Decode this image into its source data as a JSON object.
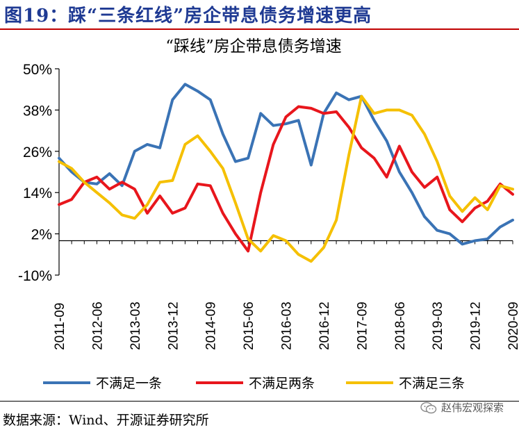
{
  "header": {
    "title": "图19：踩“三条红线”房企带息债务增速更高"
  },
  "footer": {
    "source": "数据来源：Wind、开源证券研究所",
    "watermark": "赵伟宏观探索"
  },
  "chart_data": {
    "type": "line",
    "title": "“踩线”房企带息债务增速",
    "xlabel": "",
    "ylabel": "",
    "ylim": [
      -10,
      50
    ],
    "yticks": [
      -10,
      2,
      14,
      26,
      38,
      50
    ],
    "ytick_labels": [
      "-10%",
      "2%",
      "14%",
      "26%",
      "38%",
      "50%"
    ],
    "x_tick_labels": [
      "2011-09",
      "2012-06",
      "2013-03",
      "2013-12",
      "2014-09",
      "2015-06",
      "2016-03",
      "2016-12",
      "2017-09",
      "2018-06",
      "2019-03",
      "2019-12",
      "2020-09"
    ],
    "x": [
      "2011-09",
      "2011-12",
      "2012-03",
      "2012-06",
      "2012-09",
      "2012-12",
      "2013-03",
      "2013-06",
      "2013-09",
      "2013-12",
      "2014-03",
      "2014-06",
      "2014-09",
      "2014-12",
      "2015-03",
      "2015-06",
      "2015-09",
      "2015-12",
      "2016-03",
      "2016-06",
      "2016-09",
      "2016-12",
      "2017-03",
      "2017-06",
      "2017-09",
      "2017-12",
      "2018-03",
      "2018-06",
      "2018-09",
      "2018-12",
      "2019-03",
      "2019-06",
      "2019-09",
      "2019-12",
      "2020-03",
      "2020-06",
      "2020-09"
    ],
    "series": [
      {
        "name": "不满足一条",
        "color": "#3a73b5",
        "values": [
          24,
          20,
          17,
          16.5,
          19.5,
          16,
          26,
          28,
          27,
          41,
          45.5,
          43.5,
          41,
          31,
          23,
          24,
          37,
          33.5,
          34,
          35,
          22,
          37,
          43,
          41,
          42,
          35,
          29,
          20,
          14,
          7,
          3,
          2,
          -1,
          0,
          0.5,
          4,
          6
        ]
      },
      {
        "name": "不满足两条",
        "color": "#e8161c",
        "values": [
          10.5,
          12,
          17,
          18.5,
          15,
          17,
          15,
          8,
          13,
          8,
          9.5,
          16.5,
          16,
          8,
          2,
          -3,
          14,
          28,
          36,
          39,
          38.5,
          37,
          37.5,
          33,
          27,
          24,
          18.5,
          27.5,
          20,
          15.5,
          18.5,
          9,
          5.5,
          9.5,
          11.5,
          16.5,
          13.5
        ]
      },
      {
        "name": "不满足三条",
        "color": "#f5c000",
        "values": [
          23,
          21,
          17,
          14,
          11,
          7.5,
          6.5,
          10.5,
          17,
          17.5,
          28,
          30.5,
          26,
          21,
          11,
          0.5,
          -3,
          1.5,
          0,
          -4,
          -6,
          -2,
          6,
          25,
          42,
          37,
          38,
          38,
          36.5,
          31,
          23,
          13,
          8.5,
          12.5,
          9,
          16,
          15
        ]
      }
    ],
    "legend_position": "bottom",
    "grid": false
  }
}
